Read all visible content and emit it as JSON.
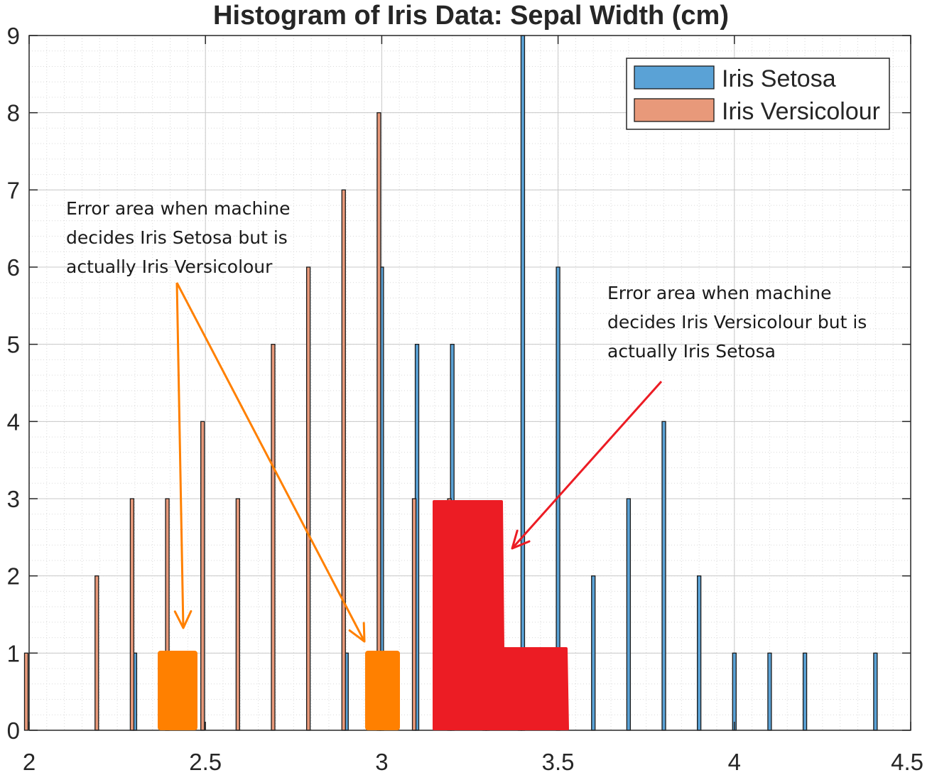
{
  "chart_data": {
    "type": "bar",
    "title": "Histogram of Iris Data: Sepal Width (cm)",
    "xlabel": "",
    "ylabel": "",
    "xlim": [
      2,
      4.5
    ],
    "ylim": [
      0,
      9
    ],
    "x_ticks": [
      "2",
      "2.5",
      "3",
      "3.5",
      "4",
      "4.5"
    ],
    "y_ticks": [
      "0",
      "1",
      "2",
      "3",
      "4",
      "5",
      "6",
      "7",
      "8",
      "9"
    ],
    "grid": "major and minor",
    "legend_position": "top-right",
    "series": [
      {
        "name": "Iris Setosa",
        "color": "#5aa2d6",
        "x": [
          2.3,
          2.9,
          3.0,
          3.1,
          3.2,
          3.3,
          3.4,
          3.5,
          3.6,
          3.7,
          3.8,
          3.9,
          4.0,
          4.1,
          4.2,
          4.4
        ],
        "values": [
          1,
          1,
          6,
          5,
          5,
          2,
          9,
          6,
          2,
          3,
          4,
          2,
          1,
          1,
          1,
          1
        ]
      },
      {
        "name": "Iris Versicolour",
        "color": "#e8997a",
        "x": [
          2.0,
          2.2,
          2.3,
          2.4,
          2.5,
          2.6,
          2.7,
          2.8,
          2.9,
          3.0,
          3.1,
          3.2,
          3.3,
          3.4
        ],
        "values": [
          1,
          2,
          3,
          3,
          4,
          3,
          5,
          6,
          7,
          8,
          3,
          3,
          1,
          1
        ]
      }
    ],
    "annotations": [
      {
        "lines": [
          "Error area when machine",
          "decides Iris Setosa but is",
          "actually Iris Versicolour"
        ],
        "color": "#ff8000"
      },
      {
        "lines": [
          "Error area when machine",
          "decides Iris Versicolour but is",
          "actually Iris Setosa"
        ],
        "color": "#ec1c24"
      }
    ]
  }
}
